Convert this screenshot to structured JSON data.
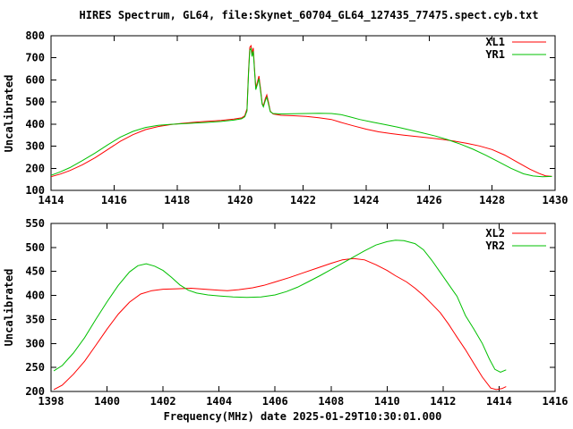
{
  "title": "HIRES Spectrum, GL64, file:Skynet_60704_GL64_127435_77475.spect.cyb.txt",
  "xlabel": "Frequency(MHz) date 2025-01-29T10:30:01.000",
  "chart_data": [
    {
      "type": "line",
      "panel": "top",
      "ylabel": "Uncalibrated",
      "xlim": [
        1414,
        1430
      ],
      "ylim": [
        100,
        800
      ],
      "xticks": [
        1414,
        1416,
        1418,
        1420,
        1422,
        1424,
        1426,
        1428,
        1430
      ],
      "yticks": [
        100,
        200,
        300,
        400,
        500,
        600,
        700,
        800
      ],
      "grid": false,
      "legend_position": "top-right",
      "series": [
        {
          "name": "XL1",
          "color": "#ff0000",
          "points": [
            [
              1414.0,
              162
            ],
            [
              1414.3,
              174
            ],
            [
              1414.6,
              190
            ],
            [
              1415.0,
              216
            ],
            [
              1415.4,
              248
            ],
            [
              1415.8,
              285
            ],
            [
              1416.2,
              322
            ],
            [
              1416.6,
              352
            ],
            [
              1417.0,
              375
            ],
            [
              1417.4,
              389
            ],
            [
              1417.8,
              398
            ],
            [
              1418.2,
              404
            ],
            [
              1418.6,
              409
            ],
            [
              1419.0,
              413
            ],
            [
              1419.4,
              417
            ],
            [
              1419.8,
              423
            ],
            [
              1420.05,
              428
            ],
            [
              1420.15,
              438
            ],
            [
              1420.22,
              470
            ],
            [
              1420.27,
              640
            ],
            [
              1420.31,
              748
            ],
            [
              1420.35,
              755
            ],
            [
              1420.38,
              720
            ],
            [
              1420.42,
              745
            ],
            [
              1420.46,
              650
            ],
            [
              1420.5,
              565
            ],
            [
              1420.55,
              590
            ],
            [
              1420.6,
              618
            ],
            [
              1420.65,
              560
            ],
            [
              1420.7,
              495
            ],
            [
              1420.74,
              482
            ],
            [
              1420.8,
              515
            ],
            [
              1420.85,
              532
            ],
            [
              1420.9,
              500
            ],
            [
              1420.96,
              458
            ],
            [
              1421.05,
              446
            ],
            [
              1421.3,
              440
            ],
            [
              1421.7,
              438
            ],
            [
              1422.1,
              435
            ],
            [
              1422.5,
              429
            ],
            [
              1422.9,
              421
            ],
            [
              1423.2,
              408
            ],
            [
              1423.6,
              392
            ],
            [
              1424.0,
              377
            ],
            [
              1424.4,
              365
            ],
            [
              1424.8,
              357
            ],
            [
              1425.2,
              350
            ],
            [
              1425.6,
              344
            ],
            [
              1426.0,
              338
            ],
            [
              1426.4,
              331
            ],
            [
              1426.8,
              323
            ],
            [
              1427.2,
              313
            ],
            [
              1427.6,
              301
            ],
            [
              1428.0,
              285
            ],
            [
              1428.4,
              260
            ],
            [
              1428.8,
              228
            ],
            [
              1429.2,
              196
            ],
            [
              1429.5,
              176
            ],
            [
              1429.7,
              166
            ],
            [
              1429.9,
              163
            ]
          ]
        },
        {
          "name": "YR1",
          "color": "#00c000",
          "points": [
            [
              1414.0,
              168
            ],
            [
              1414.3,
              184
            ],
            [
              1414.6,
              203
            ],
            [
              1415.0,
              235
            ],
            [
              1415.4,
              269
            ],
            [
              1415.8,
              306
            ],
            [
              1416.2,
              341
            ],
            [
              1416.6,
              367
            ],
            [
              1417.0,
              385
            ],
            [
              1417.4,
              394
            ],
            [
              1417.8,
              399
            ],
            [
              1418.2,
              402
            ],
            [
              1418.6,
              405
            ],
            [
              1419.0,
              408
            ],
            [
              1419.4,
              412
            ],
            [
              1419.8,
              418
            ],
            [
              1420.05,
              424
            ],
            [
              1420.15,
              433
            ],
            [
              1420.22,
              460
            ],
            [
              1420.27,
              628
            ],
            [
              1420.31,
              735
            ],
            [
              1420.35,
              742
            ],
            [
              1420.38,
              706
            ],
            [
              1420.42,
              730
            ],
            [
              1420.46,
              640
            ],
            [
              1420.5,
              556
            ],
            [
              1420.55,
              580
            ],
            [
              1420.6,
              606
            ],
            [
              1420.65,
              550
            ],
            [
              1420.7,
              490
            ],
            [
              1420.74,
              478
            ],
            [
              1420.8,
              506
            ],
            [
              1420.85,
              522
            ],
            [
              1420.9,
              492
            ],
            [
              1420.96,
              456
            ],
            [
              1421.05,
              448
            ],
            [
              1421.3,
              446
            ],
            [
              1421.7,
              447
            ],
            [
              1422.1,
              448
            ],
            [
              1422.5,
              449
            ],
            [
              1422.9,
              448
            ],
            [
              1423.2,
              443
            ],
            [
              1423.5,
              432
            ],
            [
              1423.8,
              421
            ],
            [
              1424.2,
              409
            ],
            [
              1424.6,
              398
            ],
            [
              1425.0,
              386
            ],
            [
              1425.4,
              373
            ],
            [
              1425.8,
              360
            ],
            [
              1426.2,
              346
            ],
            [
              1426.6,
              329
            ],
            [
              1427.0,
              309
            ],
            [
              1427.4,
              286
            ],
            [
              1427.8,
              259
            ],
            [
              1428.2,
              230
            ],
            [
              1428.6,
              200
            ],
            [
              1429.0,
              175
            ],
            [
              1429.3,
              165
            ],
            [
              1429.6,
              162
            ],
            [
              1429.9,
              163
            ]
          ]
        }
      ]
    },
    {
      "type": "line",
      "panel": "bottom",
      "ylabel": "Uncalibrated",
      "xlim": [
        1398,
        1416
      ],
      "ylim": [
        200,
        550
      ],
      "xticks": [
        1398,
        1400,
        1402,
        1404,
        1406,
        1408,
        1410,
        1412,
        1414,
        1416
      ],
      "yticks": [
        200,
        250,
        300,
        350,
        400,
        450,
        500,
        550
      ],
      "grid": false,
      "legend_position": "top-right",
      "series": [
        {
          "name": "XL2",
          "color": "#ff0000",
          "points": [
            [
              1398.1,
              204
            ],
            [
              1398.4,
              213
            ],
            [
              1398.8,
              236
            ],
            [
              1399.2,
              263
            ],
            [
              1399.6,
              296
            ],
            [
              1400.0,
              330
            ],
            [
              1400.4,
              361
            ],
            [
              1400.8,
              386
            ],
            [
              1401.2,
              403
            ],
            [
              1401.6,
              410
            ],
            [
              1402.0,
              413
            ],
            [
              1402.5,
              414
            ],
            [
              1403.0,
              415
            ],
            [
              1403.5,
              413
            ],
            [
              1404.0,
              411
            ],
            [
              1404.3,
              410
            ],
            [
              1404.7,
              412
            ],
            [
              1405.2,
              416
            ],
            [
              1405.6,
              421
            ],
            [
              1406.0,
              428
            ],
            [
              1406.5,
              437
            ],
            [
              1407.0,
              447
            ],
            [
              1407.5,
              457
            ],
            [
              1408.0,
              467
            ],
            [
              1408.4,
              474
            ],
            [
              1408.8,
              477
            ],
            [
              1409.2,
              474
            ],
            [
              1409.6,
              464
            ],
            [
              1410.0,
              452
            ],
            [
              1410.3,
              441
            ],
            [
              1410.7,
              428
            ],
            [
              1411.0,
              415
            ],
            [
              1411.3,
              400
            ],
            [
              1411.6,
              382
            ],
            [
              1411.9,
              364
            ],
            [
              1412.2,
              340
            ],
            [
              1412.5,
              313
            ],
            [
              1412.8,
              287
            ],
            [
              1413.1,
              258
            ],
            [
              1413.4,
              230
            ],
            [
              1413.7,
              207
            ],
            [
              1413.9,
              204
            ],
            [
              1414.1,
              206
            ],
            [
              1414.25,
              210
            ]
          ]
        },
        {
          "name": "YR2",
          "color": "#00c000",
          "points": [
            [
              1398.1,
              243
            ],
            [
              1398.4,
              254
            ],
            [
              1398.8,
              280
            ],
            [
              1399.2,
              312
            ],
            [
              1399.6,
              350
            ],
            [
              1400.0,
              387
            ],
            [
              1400.4,
              421
            ],
            [
              1400.8,
              449
            ],
            [
              1401.1,
              462
            ],
            [
              1401.4,
              466
            ],
            [
              1401.7,
              461
            ],
            [
              1402.0,
              452
            ],
            [
              1402.3,
              438
            ],
            [
              1402.6,
              422
            ],
            [
              1402.9,
              411
            ],
            [
              1403.2,
              405
            ],
            [
              1403.6,
              401
            ],
            [
              1404.0,
              399
            ],
            [
              1404.5,
              397
            ],
            [
              1405.0,
              396
            ],
            [
              1405.5,
              397
            ],
            [
              1406.0,
              401
            ],
            [
              1406.4,
              408
            ],
            [
              1406.8,
              417
            ],
            [
              1407.2,
              429
            ],
            [
              1407.6,
              441
            ],
            [
              1408.0,
              454
            ],
            [
              1408.4,
              467
            ],
            [
              1408.8,
              480
            ],
            [
              1409.2,
              493
            ],
            [
              1409.6,
              505
            ],
            [
              1410.0,
              512
            ],
            [
              1410.3,
              515
            ],
            [
              1410.6,
              514
            ],
            [
              1411.0,
              508
            ],
            [
              1411.3,
              495
            ],
            [
              1411.6,
              473
            ],
            [
              1411.9,
              448
            ],
            [
              1412.2,
              423
            ],
            [
              1412.5,
              398
            ],
            [
              1412.8,
              358
            ],
            [
              1413.1,
              330
            ],
            [
              1413.4,
              300
            ],
            [
              1413.65,
              268
            ],
            [
              1413.85,
              246
            ],
            [
              1414.05,
              240
            ],
            [
              1414.25,
              245
            ]
          ]
        }
      ]
    }
  ]
}
